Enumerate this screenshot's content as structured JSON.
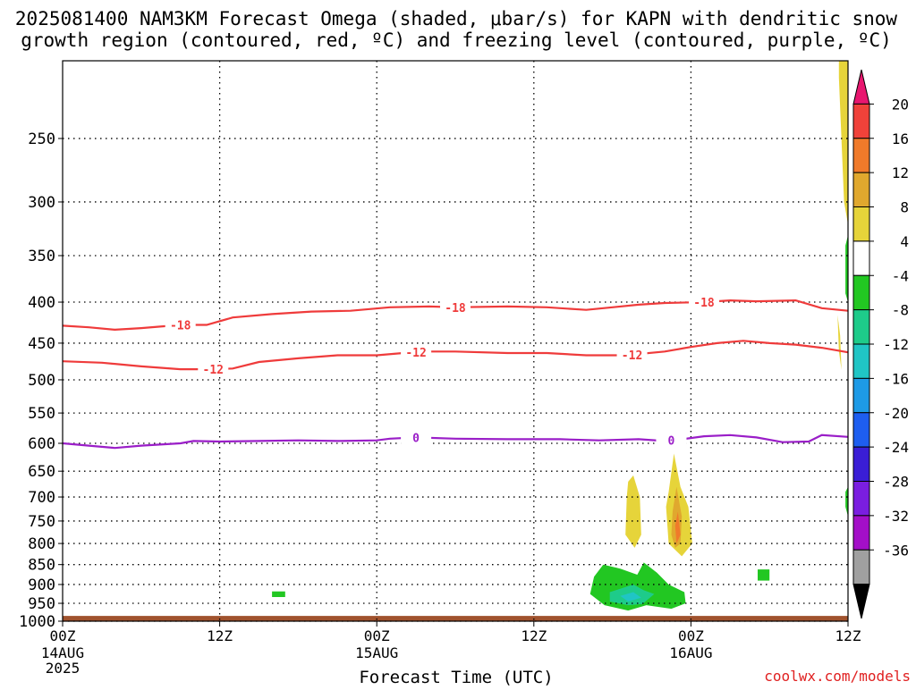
{
  "chart_data": {
    "type": "heatmap",
    "title_line1": "2025081400 NAM3KM Forecast Omega (shaded, μbar/s) for KAPN with dendritic snow",
    "title_line2": "growth region (contoured, red, ºC) and freezing level (contoured, purple, ºC)",
    "xlabel": "Forecast Time (UTC)",
    "ylabel": "",
    "credit": "coolwx.com/models",
    "x_ticks": [
      {
        "hour": 0,
        "label": "00Z",
        "date": "14AUG",
        "year": "2025"
      },
      {
        "hour": 12,
        "label": "12Z",
        "date": "",
        "year": ""
      },
      {
        "hour": 24,
        "label": "00Z",
        "date": "15AUG",
        "year": ""
      },
      {
        "hour": 36,
        "label": "12Z",
        "date": "",
        "year": ""
      },
      {
        "hour": 48,
        "label": "00Z",
        "date": "16AUG",
        "year": ""
      },
      {
        "hour": 60,
        "label": "12Z",
        "date": "",
        "year": ""
      }
    ],
    "xlim": [
      0,
      60
    ],
    "y_ticks": [
      250,
      300,
      350,
      400,
      450,
      500,
      550,
      600,
      650,
      700,
      750,
      800,
      850,
      900,
      950,
      1000
    ],
    "ylim_hpa": [
      200,
      1000
    ],
    "y_scale": "log-pressure",
    "grid": true,
    "colorbar": {
      "labels": [
        "20",
        "16",
        "12",
        "8",
        "4",
        "-4",
        "-8",
        "-12",
        "-16",
        "-20",
        "-24",
        "-28",
        "-32",
        "-36"
      ],
      "colors": [
        "#e8176f",
        "#f0423a",
        "#f07a2a",
        "#e0a82e",
        "#e6d43a",
        "#ffffff",
        "#22c722",
        "#1ecb8a",
        "#20c5c5",
        "#1e9ae6",
        "#1e5ef0",
        "#3a1ed6",
        "#7a1ee0",
        "#a30fc8",
        "#a0a0a0",
        "#000000"
      ]
    },
    "contours": [
      {
        "color": "#ef3b3b",
        "label": "-18",
        "label_hours": [
          9.0,
          30.0,
          49.0
        ],
        "points": [
          [
            0,
            428
          ],
          [
            2,
            430
          ],
          [
            4,
            433
          ],
          [
            6,
            431
          ],
          [
            9,
            427
          ],
          [
            11,
            427
          ],
          [
            13,
            418
          ],
          [
            16,
            414
          ],
          [
            19,
            411
          ],
          [
            22,
            410
          ],
          [
            25,
            406
          ],
          [
            28,
            405
          ],
          [
            30,
            406
          ],
          [
            34,
            405
          ],
          [
            37,
            406
          ],
          [
            40,
            409
          ],
          [
            42,
            406
          ],
          [
            44,
            403
          ],
          [
            46,
            401
          ],
          [
            49,
            400
          ],
          [
            51,
            398
          ],
          [
            53,
            399
          ],
          [
            56,
            398
          ],
          [
            58,
            407
          ],
          [
            60,
            410
          ]
        ]
      },
      {
        "color": "#ef3b3b",
        "label": "-12",
        "label_hours": [
          11.5,
          27.0,
          43.5
        ],
        "points": [
          [
            0,
            474
          ],
          [
            3,
            476
          ],
          [
            6,
            481
          ],
          [
            9,
            485
          ],
          [
            11,
            485
          ],
          [
            13,
            484
          ],
          [
            15,
            475
          ],
          [
            18,
            470
          ],
          [
            21,
            466
          ],
          [
            24,
            466
          ],
          [
            26,
            463
          ],
          [
            28,
            461
          ],
          [
            30,
            461
          ],
          [
            34,
            463
          ],
          [
            37,
            463
          ],
          [
            40,
            466
          ],
          [
            43,
            466
          ],
          [
            46,
            461
          ],
          [
            48,
            455
          ],
          [
            50,
            450
          ],
          [
            52,
            447
          ],
          [
            54,
            450
          ],
          [
            56,
            452
          ],
          [
            58,
            456
          ],
          [
            60,
            462
          ]
        ]
      },
      {
        "color": "#9a1ec8",
        "label": "0",
        "label_hours": [
          27.0,
          46.5
        ],
        "points": [
          [
            0,
            600
          ],
          [
            2,
            604
          ],
          [
            4,
            608
          ],
          [
            6,
            604
          ],
          [
            9,
            600
          ],
          [
            10,
            596
          ],
          [
            12,
            597
          ],
          [
            15,
            596
          ],
          [
            18,
            595
          ],
          [
            21,
            596
          ],
          [
            24,
            595
          ],
          [
            25,
            592
          ],
          [
            27,
            590
          ],
          [
            30,
            592
          ],
          [
            34,
            593
          ],
          [
            38,
            593
          ],
          [
            41,
            595
          ],
          [
            44,
            593
          ],
          [
            46,
            596
          ],
          [
            47,
            594
          ],
          [
            49,
            588
          ],
          [
            51,
            586
          ],
          [
            53,
            590
          ],
          [
            55,
            598
          ],
          [
            57,
            597
          ],
          [
            58,
            586
          ],
          [
            60,
            589
          ]
        ]
      }
    ],
    "shaded_regions": [
      {
        "value": 6,
        "points": [
          [
            59.3,
            210
          ],
          [
            59.7,
            300
          ],
          [
            60,
            320
          ],
          [
            60,
            200
          ],
          [
            59.3,
            200
          ]
        ]
      },
      {
        "value": 5,
        "points": [
          [
            59.2,
            415
          ],
          [
            59.4,
            440
          ],
          [
            59.5,
            486
          ],
          [
            59.3,
            460
          ]
        ]
      },
      {
        "value": 6,
        "points": [
          [
            43.2,
            670
          ],
          [
            43.6,
            658
          ],
          [
            44.1,
            700
          ],
          [
            44.2,
            780
          ],
          [
            43.7,
            810
          ],
          [
            43.0,
            780
          ],
          [
            43.1,
            700
          ]
        ]
      },
      {
        "value": 6,
        "points": [
          [
            46.3,
            690
          ],
          [
            46.7,
            618
          ],
          [
            47.2,
            680
          ],
          [
            47.8,
            720
          ],
          [
            48.1,
            800
          ],
          [
            47.3,
            830
          ],
          [
            46.3,
            800
          ],
          [
            46.1,
            720
          ]
        ]
      },
      {
        "value": 10,
        "points": [
          [
            46.6,
            730
          ],
          [
            46.9,
            680
          ],
          [
            47.3,
            740
          ],
          [
            47.2,
            800
          ],
          [
            46.8,
            810
          ],
          [
            46.5,
            780
          ]
        ]
      },
      {
        "value": 14,
        "points": [
          [
            46.8,
            760
          ],
          [
            47.0,
            730
          ],
          [
            47.2,
            780
          ],
          [
            46.9,
            800
          ]
        ]
      },
      {
        "value": -6,
        "points": [
          [
            40.6,
            880
          ],
          [
            41.3,
            850
          ],
          [
            42.6,
            860
          ],
          [
            43.9,
            875
          ],
          [
            44.4,
            845
          ],
          [
            45.4,
            870
          ],
          [
            46.3,
            900
          ],
          [
            47.5,
            920
          ],
          [
            47.6,
            950
          ],
          [
            46.5,
            965
          ],
          [
            44.6,
            955
          ],
          [
            43.2,
            970
          ],
          [
            41.4,
            955
          ],
          [
            40.3,
            925
          ]
        ]
      },
      {
        "value": -10,
        "points": [
          [
            41.8,
            920
          ],
          [
            43.6,
            900
          ],
          [
            44.4,
            915
          ],
          [
            45.2,
            925
          ],
          [
            44.3,
            952
          ],
          [
            43.2,
            955
          ],
          [
            41.8,
            945
          ]
        ]
      },
      {
        "value": -14,
        "points": [
          [
            42.6,
            930
          ],
          [
            43.6,
            920
          ],
          [
            44.2,
            935
          ],
          [
            43.2,
            945
          ]
        ]
      },
      {
        "value": -6,
        "points": [
          [
            16.0,
            918
          ],
          [
            17.0,
            918
          ],
          [
            17.0,
            933
          ],
          [
            16.0,
            933
          ]
        ]
      },
      {
        "value": -6,
        "points": [
          [
            53.1,
            862
          ],
          [
            54.0,
            862
          ],
          [
            54.0,
            890
          ],
          [
            53.1,
            890
          ]
        ]
      },
      {
        "value": -6,
        "points": [
          [
            59.8,
            340
          ],
          [
            60,
            330
          ],
          [
            60,
            400
          ],
          [
            59.8,
            390
          ]
        ]
      },
      {
        "value": -6,
        "points": [
          [
            59.8,
            690
          ],
          [
            60,
            680
          ],
          [
            60,
            740
          ],
          [
            59.8,
            720
          ]
        ]
      }
    ],
    "below_ground_color": "#a0522d",
    "below_ground_from_hpa": 985
  }
}
